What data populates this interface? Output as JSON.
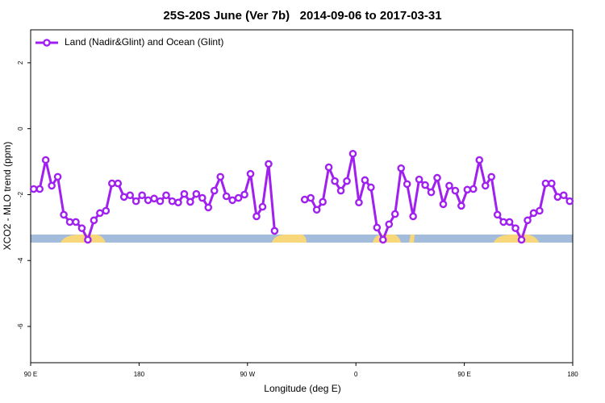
{
  "chart_data": {
    "type": "line",
    "title": "25S-20S June (Ver 7b)   2014-09-06 to 2017-03-31",
    "x_label": "Longitude (deg E)",
    "y_label": "XCO2 - MLO trend (ppm)",
    "x": [
      92.5,
      97.5,
      102.5,
      107.5,
      112.5,
      117.5,
      122.5,
      127.5,
      132.5,
      137.5,
      142.5,
      147.5,
      152.5,
      157.5,
      162.5,
      167.5,
      172.5,
      177.5,
      182.5,
      187.5,
      192.5,
      197.5,
      202.5,
      207.5,
      212.5,
      217.5,
      222.5,
      227.5,
      232.5,
      237.5,
      242.5,
      247.5,
      252.5,
      257.5,
      262.5,
      267.5,
      272.5,
      277.5,
      282.5,
      287.5,
      292.5,
      297.5,
      302.5,
      307.5,
      312.5,
      317.5,
      322.5,
      327.5,
      332.5,
      337.5,
      342.5,
      347.5,
      352.5,
      357.5,
      362.5,
      367.5,
      372.5,
      377.5,
      382.5,
      387.5,
      392.5,
      397.5,
      402.5,
      407.5,
      412.5,
      417.5,
      422.5,
      427.5,
      432.5,
      437.5,
      442.5,
      447.5,
      452.5,
      457.5,
      462.5,
      467.5,
      472.5,
      477.5,
      482.5,
      487.5,
      492.5,
      497.5,
      502.5,
      507.5,
      512.5,
      517.5,
      522.5,
      527.5,
      532.5,
      537.5
    ],
    "series": [
      {
        "name": "Land (Nadir&Glint) and Ocean (Glint)",
        "color": "#a020f0",
        "values": [
          -1.83,
          -1.83,
          -0.95,
          -1.73,
          -1.46,
          -2.61,
          -2.83,
          -2.83,
          -3.02,
          -3.37,
          -2.78,
          -2.56,
          -2.49,
          -1.66,
          -1.66,
          -2.07,
          -2.02,
          -2.2,
          -2.02,
          -2.17,
          -2.12,
          -2.2,
          -2.02,
          -2.2,
          -2.24,
          -1.98,
          -2.22,
          -1.98,
          -2.1,
          -2.39,
          -1.88,
          -1.46,
          -2.05,
          -2.17,
          -2.1,
          -2.0,
          -1.37,
          -2.66,
          -2.37,
          -1.07,
          -3.1,
          null,
          null,
          null,
          null,
          -2.15,
          -2.1,
          -2.46,
          -2.22,
          -1.17,
          -1.59,
          -1.88,
          -1.59,
          -0.76,
          -2.24,
          -1.56,
          -1.78,
          -3.0,
          -3.37,
          -2.9,
          -2.59,
          -1.2,
          -1.68,
          -2.66,
          -1.54,
          -1.71,
          -1.93,
          -1.49,
          -2.29,
          -1.73,
          -1.88,
          -2.34,
          -1.85,
          -1.83,
          -0.95,
          -1.73,
          -1.46,
          -2.61,
          -2.83,
          -2.83,
          -3.02,
          -3.37,
          -2.78,
          -2.56,
          -2.49,
          -1.66,
          -1.66,
          -2.07,
          -2.02,
          -2.2
        ]
      }
    ],
    "xlim": [
      90,
      540
    ],
    "xticks": [
      {
        "value": 90,
        "label": "90 E"
      },
      180,
      {
        "value": 270,
        "label": "90 W"
      },
      {
        "value": 360,
        "label": "0"
      },
      {
        "value": 450,
        "label": "90 E"
      },
      {
        "value": 540,
        "label": "180"
      }
    ],
    "ylim": [
      -7.1,
      3
    ],
    "yticks": [
      -6,
      -4,
      -2,
      0,
      2
    ],
    "legend": "top-left"
  }
}
